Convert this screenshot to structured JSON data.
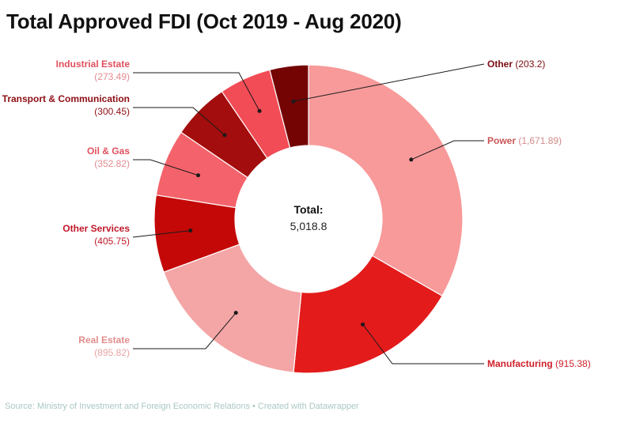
{
  "title": "Total Approved FDI (Oct 2019 - Aug 2020)",
  "source": "Source: Ministry of Investment and Foreign Economic Relations • Created with Datawrapper",
  "chart_data": {
    "type": "pie",
    "donut": true,
    "title": "Total Approved FDI (Oct 2019 - Aug 2020)",
    "center_label": "Total:",
    "center_value": "5,018.8",
    "slices": [
      {
        "label": "Power",
        "value": 1671.89,
        "display": "(1,671.89)",
        "color": "#f89a9a",
        "name_color": "#c95555",
        "val_color": "#d38a8a"
      },
      {
        "label": "Manufacturing",
        "value": 915.38,
        "display": "(915.38)",
        "color": "#e31b1b",
        "name_color": "#d0202a",
        "val_color": "#d0202a"
      },
      {
        "label": "Real Estate",
        "value": 895.82,
        "display": "(895.82)",
        "color": "#f4a5a5",
        "name_color": "#e28d8d",
        "val_color": "#e8a4a4"
      },
      {
        "label": "Other Services",
        "value": 405.75,
        "display": "(405.75)",
        "color": "#c40808",
        "name_color": "#c0182a",
        "val_color": "#c0182a"
      },
      {
        "label": "Oil & Gas",
        "value": 352.82,
        "display": "(352.82)",
        "color": "#f4636b",
        "name_color": "#e0505e",
        "val_color": "#e48a90"
      },
      {
        "label": "Transport & Communication",
        "value": 300.45,
        "display": "(300.45)",
        "color": "#a30d0d",
        "name_color": "#8e0f15",
        "val_color": "#8e0f15"
      },
      {
        "label": "Industrial Estate",
        "value": 273.49,
        "display": "(273.49)",
        "color": "#f24c56",
        "name_color": "#e0505e",
        "val_color": "#e48a90"
      },
      {
        "label": "Other",
        "value": 203.2,
        "display": "(203.2)",
        "color": "#740404",
        "name_color": "#7a0c10",
        "val_color": "#7a0c10"
      }
    ]
  }
}
